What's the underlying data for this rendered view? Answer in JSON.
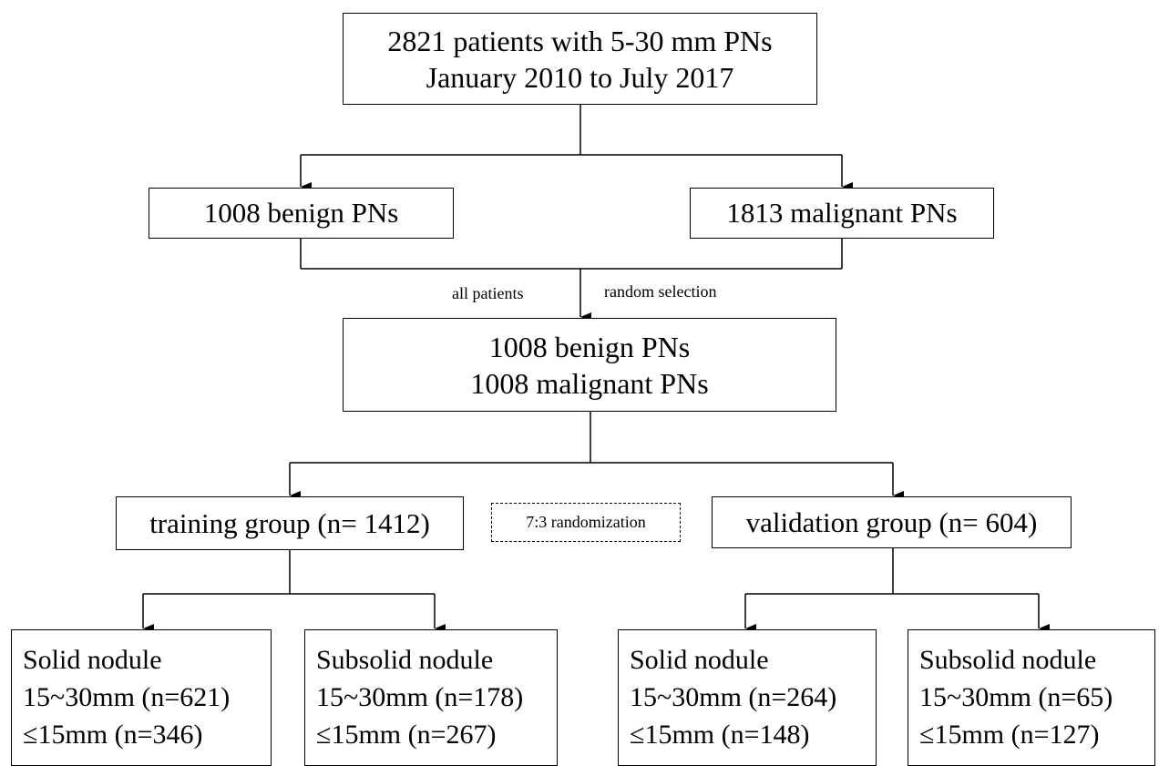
{
  "top": {
    "line1": "2821 patients with 5-30 mm PNs",
    "line2": "January 2010 to July 2017"
  },
  "benign": {
    "label": "1008 benign PNs"
  },
  "malignant": {
    "label": "1813 malignant PNs"
  },
  "selection": {
    "left_label": "all patients",
    "right_label": "random selection"
  },
  "balanced": {
    "line1": "1008 benign PNs",
    "line2": "1008 malignant PNs"
  },
  "training": {
    "label": "training group (n= 1412)"
  },
  "randomization": {
    "label": "7:3 randomization"
  },
  "validation": {
    "label": "validation group (n= 604)"
  },
  "leaves": [
    {
      "title": "Solid nodule",
      "large": "15~30mm (n=621)",
      "small": "≤15mm (n=346)"
    },
    {
      "title": "Subsolid nodule",
      "large": "15~30mm (n=178)",
      "small": "≤15mm (n=267)"
    },
    {
      "title": "Solid nodule",
      "large": "15~30mm (n=264)",
      "small": "≤15mm (n=148)"
    },
    {
      "title": "Subsolid nodule",
      "large": "15~30mm (n=65)",
      "small": "≤15mm (n=127)"
    }
  ]
}
